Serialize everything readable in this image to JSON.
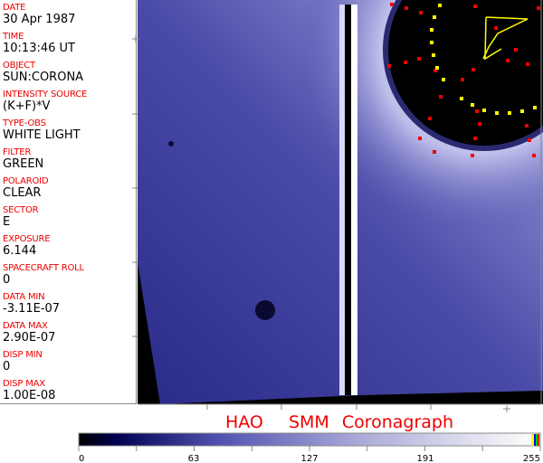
{
  "header_fields": [
    {
      "label": "DATE",
      "value": "30 Apr 1987"
    },
    {
      "label": "TIME",
      "value": "10:13:46 UT"
    },
    {
      "label": "OBJECT",
      "value": "SUN:CORONA"
    },
    {
      "label": "INTENSITY SOURCE",
      "value": "(K+F)*V"
    },
    {
      "label": "TYPE-OBS",
      "value": "WHITE LIGHT"
    },
    {
      "label": "FILTER",
      "value": "GREEN"
    },
    {
      "label": "POLAROID",
      "value": "CLEAR"
    },
    {
      "label": "SECTOR",
      "value": "E"
    },
    {
      "label": "EXPOSURE",
      "value": "6.144"
    },
    {
      "label": "SPACECRAFT ROLL",
      "value": "0"
    },
    {
      "label": "DATA MIN",
      "value": "-3.11E-07"
    },
    {
      "label": "DATA MAX",
      "value": "2.90E-07"
    },
    {
      "label": "DISP MIN",
      "value": "0"
    },
    {
      "label": "DISP MAX",
      "value": "1.00E-08"
    }
  ],
  "title": "HAO  SMM Coronagraph",
  "colorbar": {
    "ticks": [
      "0",
      "63",
      "127",
      "191",
      "255"
    ],
    "colors": {
      "low": "#000000",
      "mid": "#3a3a9a",
      "high": "#ffffff",
      "accent_red": "#e00000",
      "accent_yellow": "#ffff00"
    }
  }
}
